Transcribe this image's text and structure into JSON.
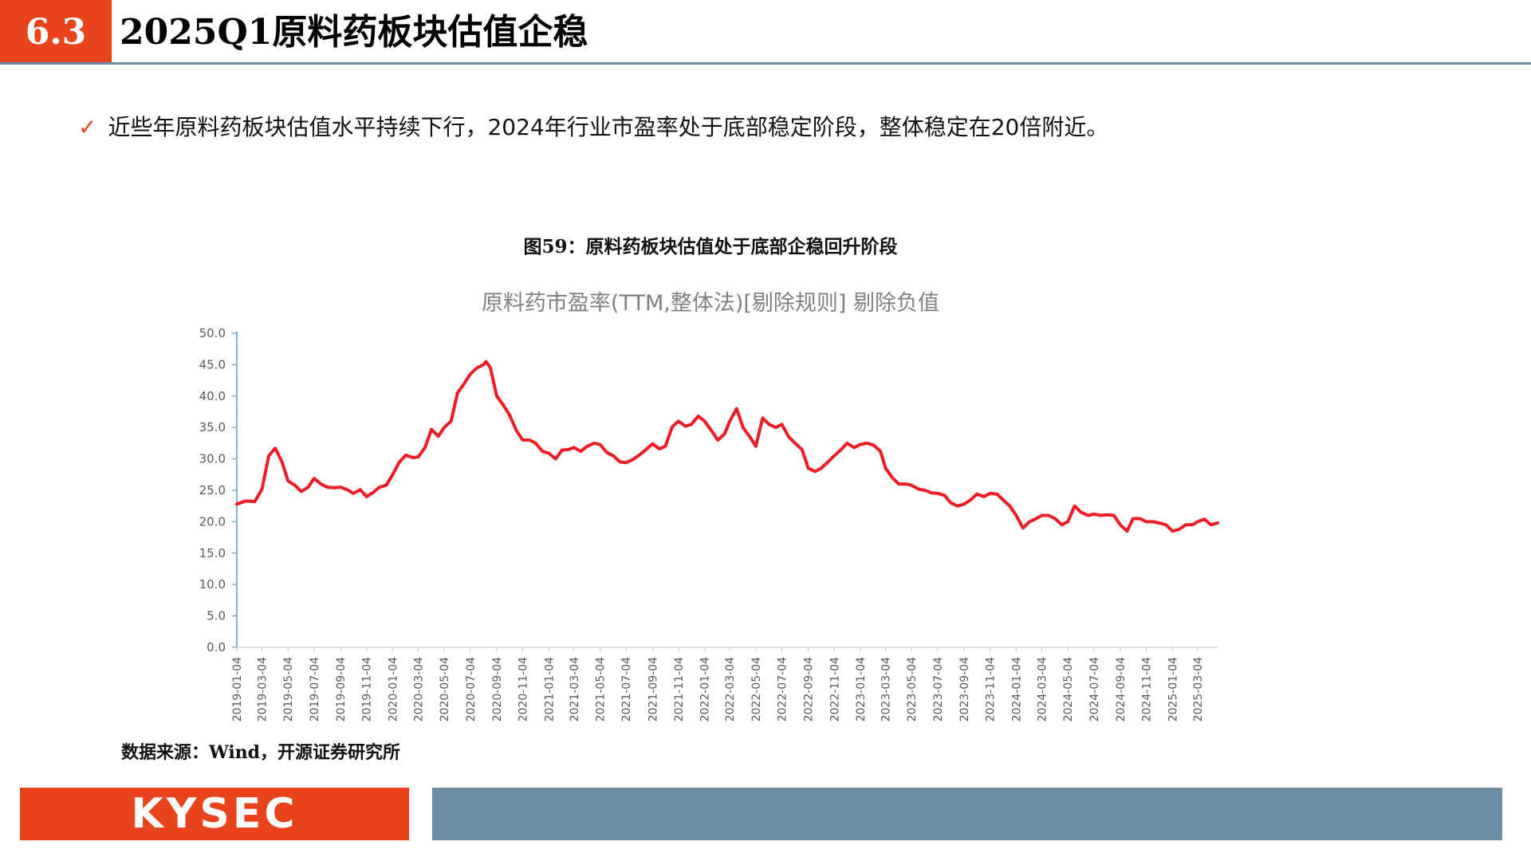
{
  "header": {
    "section_number": "6.3",
    "title": "2025Q1原料药板块估值企稳"
  },
  "bullet": {
    "check_icon": "checkmark-icon",
    "text": "近些年原料药板块估值水平持续下行，2024年行业市盈率处于底部稳定阶段，整体稳定在20倍附近。"
  },
  "figure": {
    "caption": "图59：原料药板块估值处于底部企稳回升阶段",
    "source": "数据来源：Wind，开源证券研究所"
  },
  "footer": {
    "logo_text": "KYSEC"
  },
  "colors": {
    "accent": "#e8431b",
    "steel": "#6c8ea2",
    "series": "#ee1c25"
  },
  "chart_data": {
    "type": "line",
    "title": "原料药市盈率(TTM,整体法)[剔除规则] 剔除负值",
    "xlabel": "",
    "ylabel": "",
    "ylim": [
      0,
      50
    ],
    "yticks": [
      "0.0",
      "5.0",
      "10.0",
      "15.0",
      "20.0",
      "25.0",
      "30.0",
      "35.0",
      "40.0",
      "45.0",
      "50.0"
    ],
    "xtick_labels": [
      "2019-01-04",
      "2019-03-04",
      "2019-05-04",
      "2019-07-04",
      "2019-09-04",
      "2019-11-04",
      "2020-01-04",
      "2020-03-04",
      "2020-05-04",
      "2020-07-04",
      "2020-09-04",
      "2020-11-04",
      "2021-01-04",
      "2021-03-04",
      "2021-05-04",
      "2021-07-04",
      "2021-09-04",
      "2021-11-04",
      "2022-01-04",
      "2022-03-04",
      "2022-05-04",
      "2022-07-04",
      "2022-09-04",
      "2022-11-04",
      "2023-01-04",
      "2023-03-04",
      "2023-05-04",
      "2023-07-04",
      "2023-09-04",
      "2023-11-04",
      "2024-01-04",
      "2024-03-04",
      "2024-05-04",
      "2024-07-04",
      "2024-09-04",
      "2024-11-04",
      "2025-01-04",
      "2025-03-04"
    ],
    "grid": false,
    "legend": "none",
    "series": [
      {
        "x": [
          "2019-01-04",
          "2019-01-25",
          "2019-02-15",
          "2019-03-04",
          "2019-03-20",
          "2019-04-04",
          "2019-04-20",
          "2019-05-04",
          "2019-05-20",
          "2019-06-04",
          "2019-06-20",
          "2019-07-04",
          "2019-07-20",
          "2019-08-04",
          "2019-08-20",
          "2019-09-04",
          "2019-09-20",
          "2019-10-04",
          "2019-10-20",
          "2019-11-04",
          "2019-11-20",
          "2019-12-04",
          "2019-12-20",
          "2020-01-04",
          "2020-01-20",
          "2020-02-04",
          "2020-02-20",
          "2020-03-04",
          "2020-03-20",
          "2020-04-04",
          "2020-04-20",
          "2020-05-04",
          "2020-05-20",
          "2020-06-04",
          "2020-06-20",
          "2020-07-04",
          "2020-07-20",
          "2020-08-04",
          "2020-08-10",
          "2020-08-20",
          "2020-09-04",
          "2020-09-20",
          "2020-10-04",
          "2020-10-20",
          "2020-11-04",
          "2020-11-20",
          "2020-12-04",
          "2020-12-20",
          "2021-01-04",
          "2021-01-20",
          "2021-02-04",
          "2021-02-20",
          "2021-03-04",
          "2021-03-20",
          "2021-04-04",
          "2021-04-20",
          "2021-05-04",
          "2021-05-20",
          "2021-06-04",
          "2021-06-20",
          "2021-07-04",
          "2021-07-20",
          "2021-08-04",
          "2021-08-20",
          "2021-09-04",
          "2021-09-20",
          "2021-10-04",
          "2021-10-20",
          "2021-11-04",
          "2021-11-20",
          "2021-12-04",
          "2021-12-20",
          "2022-01-04",
          "2022-01-20",
          "2022-02-04",
          "2022-02-20",
          "2022-03-04",
          "2022-03-20",
          "2022-04-04",
          "2022-04-20",
          "2022-05-04",
          "2022-05-20",
          "2022-06-04",
          "2022-06-20",
          "2022-07-04",
          "2022-07-20",
          "2022-08-04",
          "2022-08-20",
          "2022-09-04",
          "2022-09-20",
          "2022-10-04",
          "2022-10-20",
          "2022-11-04",
          "2022-11-20",
          "2022-12-04",
          "2022-12-20",
          "2023-01-04",
          "2023-01-20",
          "2023-02-04",
          "2023-02-20",
          "2023-03-04",
          "2023-03-20",
          "2023-04-04",
          "2023-04-20",
          "2023-05-04",
          "2023-05-20",
          "2023-06-04",
          "2023-06-20",
          "2023-07-04",
          "2023-07-20",
          "2023-08-04",
          "2023-08-20",
          "2023-09-04",
          "2023-09-20",
          "2023-10-04",
          "2023-10-20",
          "2023-11-04",
          "2023-11-20",
          "2023-12-04",
          "2023-12-20",
          "2024-01-04",
          "2024-01-20",
          "2024-02-04",
          "2024-02-20",
          "2024-03-04",
          "2024-03-20",
          "2024-04-04",
          "2024-04-20",
          "2024-05-04",
          "2024-05-20",
          "2024-06-04",
          "2024-06-20",
          "2024-07-04",
          "2024-07-20",
          "2024-08-04",
          "2024-08-20",
          "2024-09-04",
          "2024-09-20",
          "2024-10-04",
          "2024-10-20",
          "2024-11-04",
          "2024-11-20",
          "2024-12-04",
          "2024-12-20",
          "2025-01-04",
          "2025-01-20",
          "2025-02-04",
          "2025-02-20",
          "2025-03-04",
          "2025-03-20",
          "2025-04-04",
          "2025-04-20"
        ],
        "y": [
          22.8,
          23.3,
          23.2,
          25.2,
          30.5,
          31.7,
          29.5,
          26.5,
          25.8,
          24.8,
          25.5,
          26.9,
          26.0,
          25.5,
          25.4,
          25.5,
          25.1,
          24.5,
          25.1,
          24.0,
          24.7,
          25.5,
          25.8,
          27.5,
          29.5,
          30.6,
          30.2,
          30.3,
          31.8,
          34.7,
          33.6,
          35.0,
          36.0,
          40.5,
          42.0,
          43.5,
          44.5,
          45.0,
          45.5,
          44.5,
          40.0,
          38.5,
          37.0,
          34.5,
          33.0,
          33.0,
          32.5,
          31.2,
          30.9,
          30.0,
          31.4,
          31.5,
          31.8,
          31.2,
          32.0,
          32.5,
          32.3,
          31.0,
          30.5,
          29.5,
          29.4,
          29.9,
          30.6,
          31.5,
          32.4,
          31.6,
          32.0,
          35.1,
          36.0,
          35.2,
          35.5,
          36.8,
          36.0,
          34.5,
          33.0,
          34.0,
          36.0,
          38.0,
          35.0,
          33.5,
          32.0,
          36.5,
          35.5,
          35.0,
          35.5,
          33.5,
          32.5,
          31.5,
          28.5,
          28.0,
          28.5,
          29.5,
          30.5,
          31.5,
          32.5,
          31.8,
          32.3,
          32.5,
          32.2,
          31.2,
          28.5,
          27.0,
          26.0,
          26.0,
          25.8,
          25.2,
          25.0,
          24.6,
          24.5,
          24.2,
          23.0,
          22.5,
          22.8,
          23.5,
          24.4,
          24.0,
          24.5,
          24.4,
          23.5,
          22.5,
          21.0,
          19.0,
          20.0,
          20.5,
          21.0,
          21.0,
          20.5,
          19.5,
          20.0,
          22.5,
          21.5,
          21.0,
          21.2,
          21.0,
          21.1,
          21.0,
          19.5,
          18.5,
          20.5,
          20.5,
          20.0,
          20.0,
          19.8,
          19.5,
          18.5,
          18.8,
          19.5,
          19.5,
          20.0,
          20.4,
          19.5,
          19.8
        ]
      }
    ]
  }
}
